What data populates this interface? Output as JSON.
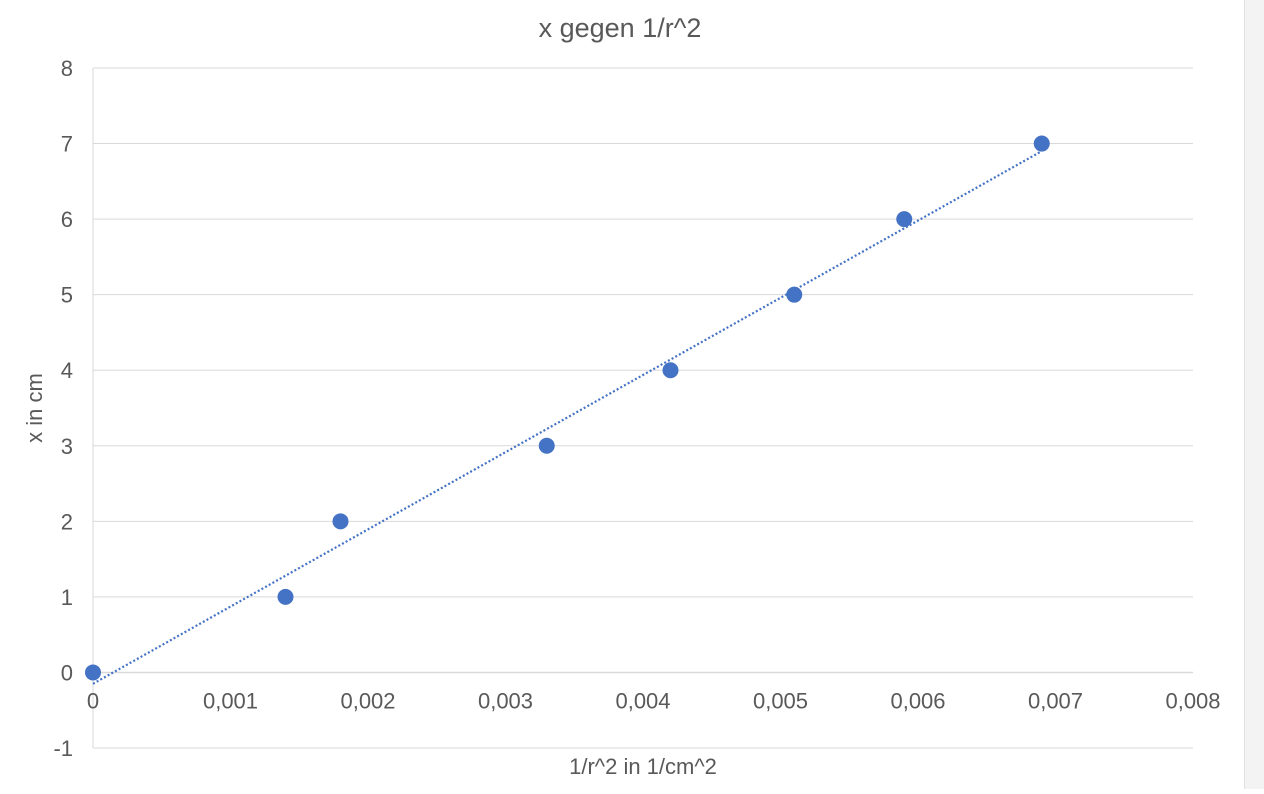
{
  "chart_data": {
    "type": "scatter",
    "title": "x gegen 1/r^2",
    "xlabel": "1/r^2 in 1/cm^2",
    "ylabel": "x in cm",
    "xlim": [
      0,
      0.008
    ],
    "ylim": [
      -1,
      8
    ],
    "x_ticks": [
      0,
      0.001,
      0.002,
      0.003,
      0.004,
      0.005,
      0.006,
      0.007,
      0.008
    ],
    "x_tick_labels": [
      "0",
      "0,001",
      "0,002",
      "0,003",
      "0,004",
      "0,005",
      "0,006",
      "0,007",
      "0,008"
    ],
    "y_ticks": [
      -1,
      0,
      1,
      2,
      3,
      4,
      5,
      6,
      7,
      8
    ],
    "y_tick_labels": [
      "-1",
      "0",
      "1",
      "2",
      "3",
      "4",
      "5",
      "6",
      "7",
      "8"
    ],
    "grid": "horizontal",
    "legend": "none",
    "series": [
      {
        "color": "#4472c4",
        "points": [
          {
            "x": 0.0,
            "y": 0
          },
          {
            "x": 0.0014,
            "y": 1
          },
          {
            "x": 0.0018,
            "y": 2
          },
          {
            "x": 0.0033,
            "y": 3
          },
          {
            "x": 0.0042,
            "y": 4
          },
          {
            "x": 0.0051,
            "y": 5
          },
          {
            "x": 0.0059,
            "y": 6
          },
          {
            "x": 0.0069,
            "y": 7
          }
        ]
      }
    ],
    "trendline": {
      "type": "linear",
      "style": "dotted",
      "color": "#4472c4",
      "x_range": [
        0,
        0.0069
      ],
      "y_range": [
        -0.15,
        6.9
      ]
    }
  },
  "colors": {
    "title": "#595959",
    "axis_text": "#595959",
    "grid": "#d9d9d9",
    "axis_line": "#d9d9d9",
    "marker": "#4472c4",
    "trendline": "#4472c4"
  }
}
